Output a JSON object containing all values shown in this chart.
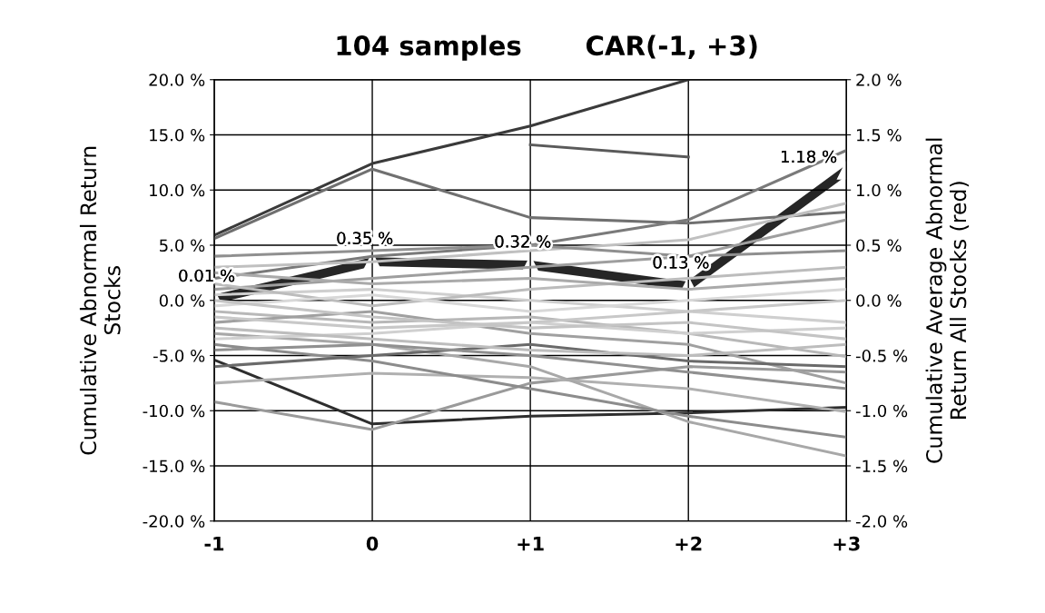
{
  "chart_data": {
    "type": "line",
    "title": "104 samples",
    "subtitle": "CAR(-1, +3)",
    "ylabel": "Cumulative Abnormal Return\nStocks",
    "y2label": "Cumulative Average Abnormal\nReturn All Stocks (red)",
    "categories": [
      "-1",
      "0",
      "+1",
      "+2",
      "+3"
    ],
    "ylim": [
      -20,
      20
    ],
    "yticks": [
      {
        "value": -20,
        "label": "-20.0 %"
      },
      {
        "value": -15,
        "label": "-15.0 %"
      },
      {
        "value": -10,
        "label": "-10.0 %"
      },
      {
        "value": -5,
        "label": "-5.0 %"
      },
      {
        "value": 0,
        "label": "0.0 %"
      },
      {
        "value": 5,
        "label": "5.0 %"
      },
      {
        "value": 10,
        "label": "10.0 %"
      },
      {
        "value": 15,
        "label": "15.0 %"
      },
      {
        "value": 20,
        "label": "20.0 %"
      }
    ],
    "y2lim": [
      -2,
      2
    ],
    "y2ticks": [
      {
        "value": -2,
        "label": "-2.0 %"
      },
      {
        "value": -1.5,
        "label": "-1.5 %"
      },
      {
        "value": -1,
        "label": "-1.0 %"
      },
      {
        "value": -0.5,
        "label": "-0.5 %"
      },
      {
        "value": 0,
        "label": "0.0 %"
      },
      {
        "value": 0.5,
        "label": "0.5 %"
      },
      {
        "value": 1,
        "label": "1.0 %"
      },
      {
        "value": 1.5,
        "label": "1.5 %"
      },
      {
        "value": 2,
        "label": "2.0 %"
      }
    ],
    "grid": true,
    "legend": false,
    "series": [
      {
        "color": "#3a3a3a",
        "values": [
          5.9,
          12.4,
          15.8,
          20.0,
          null
        ]
      },
      {
        "color": "#707070",
        "values": [
          5.6,
          11.9,
          7.5,
          7.0,
          8.0
        ]
      },
      {
        "color": "#5a5a5a",
        "values": [
          null,
          null,
          14.1,
          13.0,
          null
        ]
      },
      {
        "color": "#2e2e2e",
        "values": [
          -5.4,
          -11.2,
          -10.5,
          -10.2,
          -9.7
        ]
      },
      {
        "color": "#9a9a9a",
        "values": [
          -9.2,
          -11.7,
          -7.5,
          -6.0,
          -6.5
        ]
      },
      {
        "color": "#b0b0b0",
        "values": [
          -7.5,
          -6.6,
          -7.0,
          -8.0,
          -10.1
        ]
      },
      {
        "color": "#a8a8a8",
        "values": [
          -3.0,
          -4.0,
          -6.0,
          -11.0,
          -14.1
        ]
      },
      {
        "color": "#8c8c8c",
        "values": [
          -4.0,
          -5.5,
          -8.0,
          -10.5,
          -12.4
        ]
      },
      {
        "color": "#7a7a7a",
        "values": [
          2.0,
          4.0,
          5.0,
          7.3,
          13.6
        ]
      },
      {
        "color": "#c0c0c0",
        "values": [
          3.0,
          3.5,
          4.5,
          5.5,
          8.8
        ]
      },
      {
        "color": "#9e9e9e",
        "values": [
          1.0,
          2.0,
          3.0,
          4.0,
          7.3
        ]
      },
      {
        "color": "#cfcfcf",
        "values": [
          0.5,
          1.0,
          0.0,
          -1.0,
          -2.0
        ]
      },
      {
        "color": "#b8b8b8",
        "values": [
          -1.0,
          -2.0,
          -1.5,
          -3.0,
          -5.1
        ]
      },
      {
        "color": "#a0a0a0",
        "values": [
          -2.0,
          -1.0,
          -3.0,
          -4.0,
          -7.5
        ]
      },
      {
        "color": "#6a6a6a",
        "values": [
          -6.0,
          -5.0,
          -4.0,
          -5.5,
          -6.0
        ]
      },
      {
        "color": "#d0d0d0",
        "values": [
          -3.5,
          -3.0,
          -2.0,
          -3.0,
          -2.5
        ]
      },
      {
        "color": "#bcbcbc",
        "values": [
          1.5,
          -0.5,
          1.0,
          2.0,
          3.0
        ]
      },
      {
        "color": "#d8d8d8",
        "values": [
          -0.5,
          0.5,
          -1.0,
          0.0,
          1.0
        ]
      },
      {
        "color": "#8f8f8f",
        "values": [
          4.0,
          4.5,
          5.0,
          4.0,
          4.5
        ]
      },
      {
        "color": "#c8c8c8",
        "values": [
          -1.5,
          -2.5,
          -2.0,
          -1.0,
          0.0
        ]
      },
      {
        "color": "#909090",
        "values": [
          -4.5,
          -4.0,
          -5.0,
          -6.5,
          -8.0
        ]
      },
      {
        "color": "#aaaaaa",
        "values": [
          2.5,
          1.5,
          2.0,
          1.0,
          2.0
        ]
      },
      {
        "color": "#bdbdbd",
        "values": [
          -2.5,
          -3.5,
          -4.5,
          -5.0,
          -4.0
        ]
      },
      {
        "color": "#c4c4c4",
        "values": [
          0.0,
          -1.5,
          -2.5,
          -2.0,
          -3.5
        ]
      },
      {
        "color": "#262626",
        "axis": "y2",
        "marker": "triangle",
        "values": [
          0.01,
          0.35,
          0.32,
          0.13,
          1.18
        ],
        "value_labels": [
          "0.01 %",
          "0.35 %",
          "0.32 %",
          "0.13 %",
          "1.18 %"
        ]
      }
    ]
  }
}
